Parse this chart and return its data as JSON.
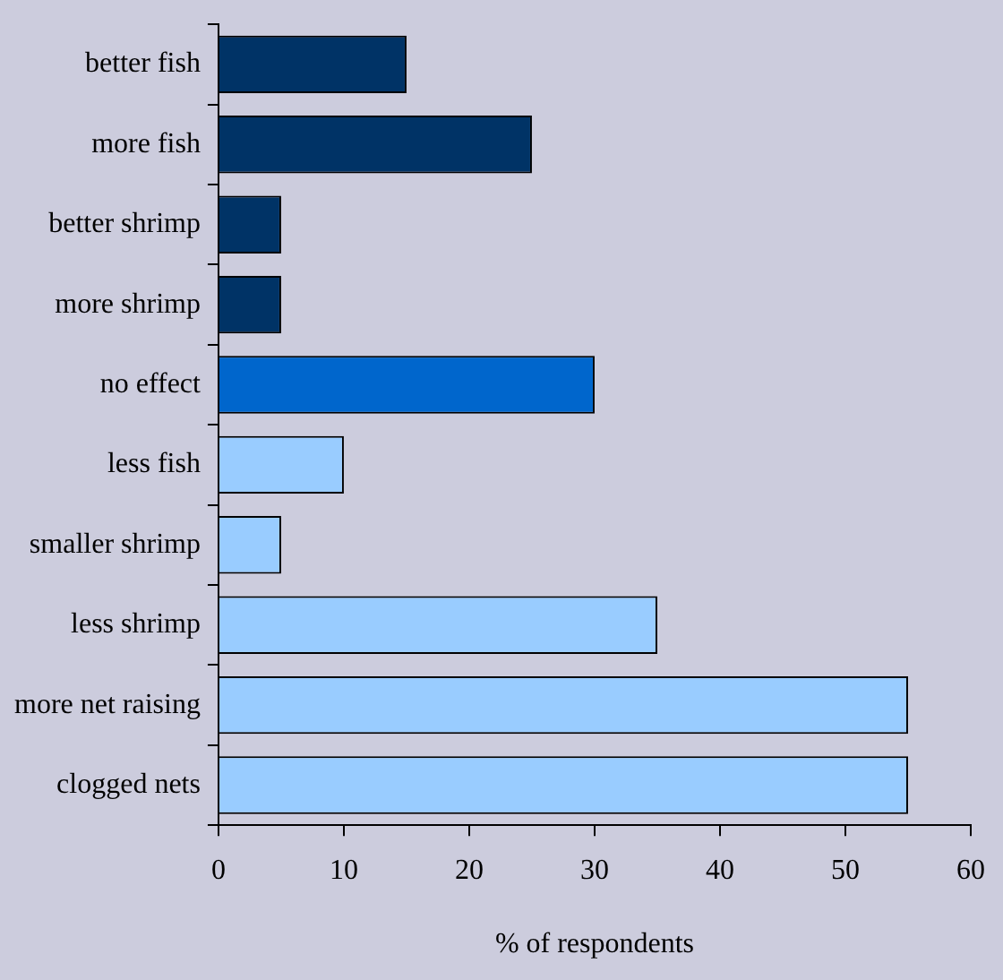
{
  "chart_data": {
    "type": "bar",
    "orientation": "horizontal",
    "xlabel": "% of respondents",
    "categories": [
      "better fish",
      "more fish",
      "better shrimp",
      "more shrimp",
      "no effect",
      "less fish",
      "smaller shrimp",
      "less shrimp",
      "more net raising",
      "clogged nets"
    ],
    "values": [
      15,
      25,
      5,
      5,
      30,
      10,
      5,
      35,
      55,
      55
    ],
    "colors": [
      "#003366",
      "#003366",
      "#003366",
      "#003366",
      "#0066cc",
      "#99ccff",
      "#99ccff",
      "#99ccff",
      "#99ccff",
      "#99ccff"
    ],
    "xlim": [
      0,
      60
    ],
    "xticks": [
      0,
      10,
      20,
      30,
      40,
      50,
      60
    ],
    "grid": false,
    "legend": false
  }
}
